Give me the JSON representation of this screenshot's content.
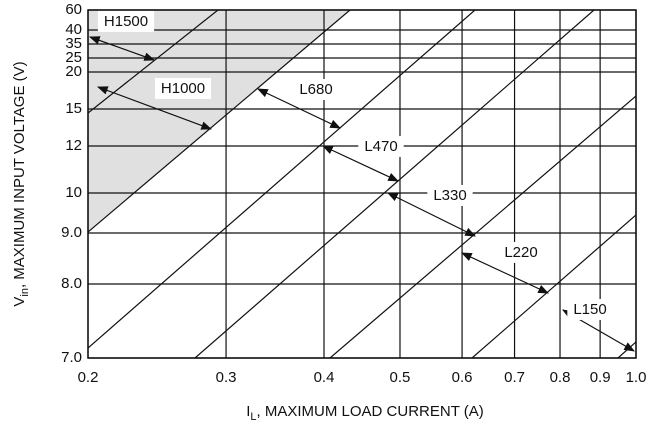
{
  "chart_data": {
    "type": "line",
    "x_label": {
      "main": "I",
      "sub": "L",
      "rest": ", MAXIMUM LOAD CURRENT (A)"
    },
    "y_label": {
      "main": "V",
      "sub": "in",
      "rest": ", MAXIMUM INPUT VOLTAGE (V)"
    },
    "xscale": "log",
    "xlim": [
      0.2,
      1.0
    ],
    "xticks": [
      0.2,
      0.3,
      0.4,
      0.5,
      0.6,
      0.7,
      0.8,
      0.9,
      {
        "value": 1.0,
        "label": "1.0"
      }
    ],
    "ylim": [
      7,
      60
    ],
    "yticks": [
      {
        "value": 7,
        "label": "7.0"
      },
      {
        "value": 8,
        "label": "8.0"
      },
      {
        "value": 9,
        "label": "9.0"
      },
      10,
      12,
      15,
      20,
      25,
      35,
      40,
      60
    ],
    "grid": true,
    "shade_color": "#e0e0e0",
    "annotations": [
      "H1500",
      "H1000",
      "L680",
      "L470",
      "L330",
      "L220",
      "L150"
    ]
  }
}
